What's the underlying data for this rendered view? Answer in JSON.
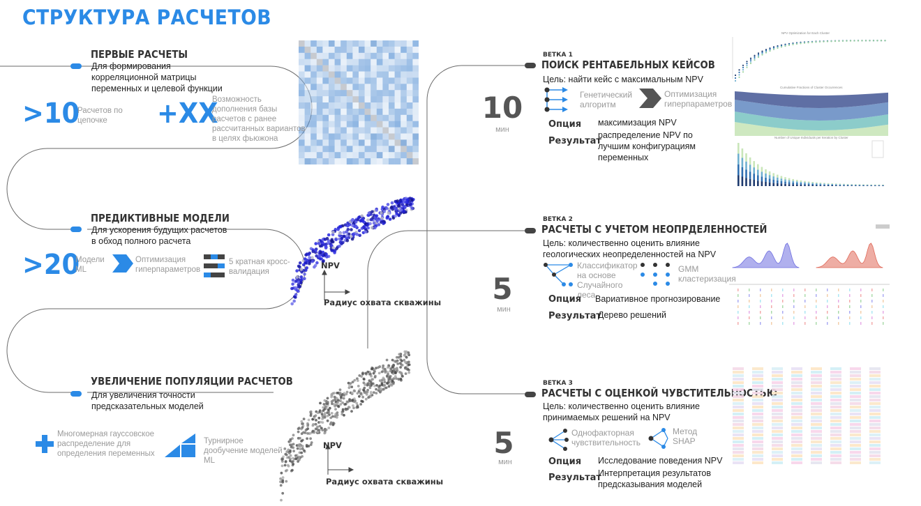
{
  "title": "СТРУКТУРА РАСЧЕТОВ",
  "stages": [
    {
      "heading": "ПЕРВЫЕ РАСЧЕТЫ",
      "description": "Для формирования корреляционной матрицы переменных и целевой функции",
      "stat_big": ">10",
      "stat_big_label": "Расчетов по цепочке",
      "stat2_big": "+XX",
      "stat2_label": "Возможность дополнения базы расчетов с ранее рассчитанных вариантов в целях фьюжона"
    },
    {
      "heading": "ПРЕДИКТИВНЫЕ МОДЕЛИ",
      "description": "Для ускорения будущих расчетов в обход полного расчета",
      "stat_big": ">20",
      "stat_big_label": "Модели ML",
      "feature1": "Оптимизация гиперпараметров",
      "feature2": "5 кратная кросс-валидация"
    },
    {
      "heading": "УВЕЛИЧЕНИЕ ПОПУЛЯЦИИ РАСЧЕТОВ",
      "description": "Для увеличения точности предсказательных моделей",
      "feature1": "Многомерная гауссовское распределение для определения переменных",
      "feature2": "Турнирное дообучение моделей ML"
    }
  ],
  "scatter_labels": {
    "y1": "NPV",
    "x1": "Радиус охвата скважины",
    "y2": "NPV",
    "x2": "Радиус охвата скважины"
  },
  "branches": [
    {
      "tag": "ВЕТКА 1",
      "heading": "ПОИСК РЕНТАБЕЛЬНЫХ КЕЙСОВ",
      "goal": "Цель: найти кейс с максимальным NPV",
      "time": "10",
      "time_unit": "мин",
      "method1": "Генетический алгоритм",
      "method2": "Оптимизация гиперпараметров",
      "option_label": "Опция",
      "option_value": "максимизация NPV",
      "result_label": "Результат",
      "result_value": "распределение NPV по лучшим конфигурациям переменных"
    },
    {
      "tag": "ВЕТКА 2",
      "heading": "РАСЧЕТЫ С УЧЕТОМ НЕОПРДЕЛЕННОСТЕЙ",
      "goal": "Цель: количественно оценить влияние геологических неопределенностей на NPV",
      "time": "5",
      "time_unit": "мин",
      "method1": "Классификатор на основе Случайного леса",
      "method2": "GMM кластеризация",
      "option_label": "Опция",
      "option_value": "Вариативное прогнозирование",
      "result_label": "Результат",
      "result_value": "Дерево решений"
    },
    {
      "tag": "ВЕТКА 3",
      "heading": "РАСЧЕТЫ С ОЦЕНКОЙ ЧУВСТИТЕЛЬНОСТЬЮ",
      "goal": "Цель: количественно оценить влияние принимаемых решений на NPV",
      "time": "5",
      "time_unit": "мин",
      "method1": "Однофакторная чувствительность",
      "method2": "Метод SHAP",
      "option_label": "Опция",
      "option_value": "Исследование поведения NPV",
      "result_label": "Результат",
      "result_value": "Интерпретация результатов предсказывания моделей"
    }
  ],
  "thumb_texts": {
    "t1": "NPV Optimization for Each Cluster",
    "t2": "Cumulative Fractions of Cluster Occurrences",
    "t3": "Number of Unique Individuals per Iteration by Cluster"
  },
  "colors": {
    "accent": "#2b8ae6",
    "dark": "#444444",
    "gray": "#9a9a9a"
  }
}
